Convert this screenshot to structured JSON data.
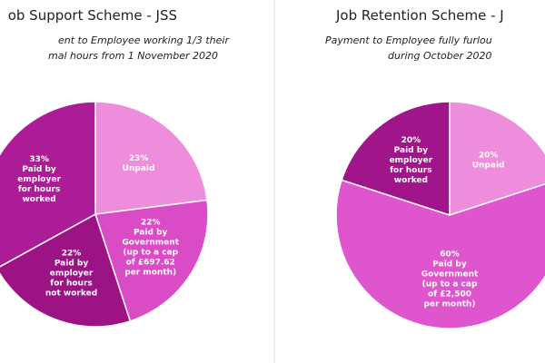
{
  "chart_data": [
    {
      "type": "pie",
      "title": "ob Support Scheme - JSS",
      "subtitle": [
        "ent to Employee working 1/3 their",
        "mal hours from 1 November 2020"
      ],
      "categories": [
        "Unpaid",
        "Paid by\nGovernment\n(up to a cap\nof £697.62\nper month)",
        "Paid by\nemployer\nfor hours\nnot worked",
        "Paid by\nemployer\nfor hours\nworked"
      ],
      "values": [
        23,
        22,
        22,
        33
      ],
      "value_labels": [
        "23%",
        "22%",
        "22%",
        "33%"
      ],
      "colors": [
        "#ee8ddc",
        "#d94cc6",
        "#9c1386",
        "#ad1c97"
      ]
    },
    {
      "type": "pie",
      "title": "Job Retention Scheme - J",
      "subtitle": [
        "Payment to Employee fully furlou",
        "during October 2020"
      ],
      "categories": [
        "Unpaid",
        "Paid by\nGovernment\n(up to a cap\nof £2,500\nper month)",
        "Paid by\nemployer\nfor hours\nworked"
      ],
      "values": [
        20,
        60,
        20
      ],
      "value_labels": [
        "20%",
        "60%",
        "20%"
      ],
      "colors": [
        "#ee8ddc",
        "#df55cd",
        "#a0168a"
      ]
    }
  ]
}
